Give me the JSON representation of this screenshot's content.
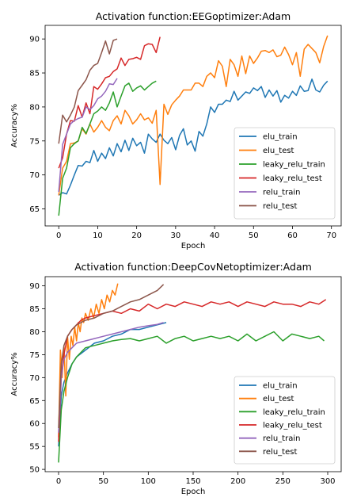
{
  "chart_data": [
    {
      "type": "line",
      "title": "Activation function:EEGoptimizer:Adam",
      "xlabel": "Epoch",
      "ylabel": "Accuracy%",
      "xlim": [
        -3.5,
        72.5
      ],
      "ylim": [
        62.5,
        92.0
      ],
      "xticks": [
        0,
        10,
        20,
        30,
        40,
        50,
        60,
        70
      ],
      "yticks": [
        65,
        70,
        75,
        80,
        85,
        90
      ],
      "grid": false,
      "legend_position": "lower-right",
      "series": [
        {
          "name": "elu_train",
          "color": "#1f77b4",
          "values": [
            67.0,
            67.4,
            67.2,
            68.5,
            70.0,
            71.4,
            71.3,
            72.0,
            71.8,
            73.6,
            72.0,
            73.2,
            72.4,
            74.0,
            72.8,
            74.6,
            73.4,
            75.1,
            73.6,
            75.4,
            74.3,
            74.8,
            73.2,
            76.0,
            75.3,
            74.8,
            76.0,
            75.1,
            74.6,
            75.5,
            73.7,
            75.8,
            76.8,
            74.4,
            75.0,
            73.5,
            76.4,
            75.7,
            77.5,
            80.0,
            79.2,
            80.4,
            80.4,
            81.0,
            80.8,
            82.3,
            81.0,
            81.6,
            82.2,
            82.0,
            82.8,
            82.4,
            83.0,
            81.4,
            82.5,
            81.6,
            82.4,
            80.7,
            81.7,
            81.3,
            82.3,
            81.7,
            83.1,
            82.3,
            82.4,
            84.1,
            82.5,
            82.2,
            83.2,
            83.8
          ]
        },
        {
          "name": "elu_test",
          "color": "#ff7f0e",
          "values": [
            67.0,
            71.0,
            72.0,
            74.6,
            74.7,
            75.0,
            76.8,
            76.0,
            77.5,
            76.3,
            77.0,
            78.0,
            77.0,
            76.5,
            78.0,
            78.7,
            77.5,
            79.5,
            78.7,
            77.5,
            78.1,
            79.0,
            78.1,
            78.4,
            77.6,
            79.5,
            68.6,
            80.4,
            78.9,
            80.3,
            81.0,
            81.6,
            82.5,
            82.5,
            82.5,
            83.5,
            83.5,
            83.0,
            84.5,
            85.0,
            84.3,
            86.8,
            86.0,
            83.0,
            87.0,
            86.2,
            84.5,
            87.5,
            84.9,
            87.5,
            86.4,
            87.2,
            88.2,
            88.3,
            88.0,
            88.4,
            87.4,
            87.6,
            88.8,
            87.7,
            86.2,
            88.0,
            84.5,
            88.5,
            89.2,
            88.6,
            88.0,
            86.5,
            88.9,
            90.5
          ]
        },
        {
          "name": "leaky_relu_train",
          "color": "#2ca02c",
          "values": [
            64.0,
            69.5,
            71.0,
            74.0,
            74.6,
            75.0,
            77.0,
            76.1,
            77.5,
            79.0,
            79.4,
            80.0,
            79.5,
            80.6,
            82.2,
            80.0,
            81.6,
            83.1,
            83.5,
            82.3,
            82.8,
            83.1,
            82.5,
            83.0,
            83.5,
            83.8
          ]
        },
        {
          "name": "leaky_relu_test",
          "color": "#d62728",
          "values": [
            71.0,
            72.5,
            76.0,
            78.0,
            77.9,
            80.2,
            78.5,
            80.6,
            79.0,
            83.0,
            82.6,
            83.4,
            84.3,
            84.5,
            85.2,
            85.6,
            87.2,
            86.1,
            87.0,
            87.1,
            87.3,
            87.0,
            89.0,
            89.3,
            89.2,
            88.0,
            90.3
          ]
        },
        {
          "name": "relu_train",
          "color": "#9467bd",
          "values": [
            67.5,
            74.5,
            76.0,
            77.5,
            78.0,
            78.3,
            78.5,
            80.0,
            79.6,
            80.2,
            81.2,
            81.6,
            82.3,
            83.4,
            83.3,
            84.2
          ]
        },
        {
          "name": "relu_test",
          "color": "#8c564b",
          "values": [
            74.6,
            78.8,
            77.8,
            78.8,
            80.0,
            82.4,
            83.2,
            84.0,
            85.4,
            86.1,
            86.4,
            88.0,
            89.7,
            87.8,
            89.8,
            90.0
          ]
        }
      ]
    },
    {
      "type": "line",
      "title": "Activation function:DeepCovNetoptimizer:Adam",
      "xlabel": "Epoch",
      "ylabel": "Accuracy%",
      "xlim": [
        -15,
        315
      ],
      "ylim": [
        49.5,
        92.0
      ],
      "xticks": [
        0,
        50,
        100,
        150,
        200,
        250,
        300
      ],
      "yticks": [
        50,
        55,
        60,
        65,
        70,
        75,
        80,
        85,
        90
      ],
      "grid": false,
      "legend_position": "lower-right",
      "series": [
        {
          "name": "elu_train",
          "color": "#1f77b4",
          "x": [
            0,
            3,
            6,
            10,
            15,
            20,
            30,
            40,
            50,
            60,
            70,
            80,
            90,
            100,
            110,
            120
          ],
          "y": [
            55.0,
            66.0,
            69.0,
            71.0,
            73.0,
            74.5,
            76.0,
            77.5,
            78.0,
            79.0,
            79.5,
            80.5,
            80.5,
            81.0,
            81.5,
            82.0
          ]
        },
        {
          "name": "elu_test",
          "color": "#ff7f0e",
          "x": [
            0,
            2,
            4,
            6,
            8,
            10,
            12,
            14,
            16,
            18,
            20,
            22,
            24,
            26,
            28,
            30,
            33,
            36,
            39,
            42,
            45,
            48,
            51,
            54,
            57,
            60,
            63,
            66
          ],
          "y": [
            57.0,
            76.0,
            70.0,
            77.0,
            66.0,
            79.0,
            74.0,
            79.0,
            77.0,
            81.0,
            78.0,
            82.0,
            80.0,
            83.0,
            82.0,
            84.0,
            82.5,
            85.0,
            83.0,
            86.0,
            84.0,
            87.0,
            85.0,
            88.0,
            86.5,
            89.0,
            88.0,
            90.5
          ]
        },
        {
          "name": "leaky_relu_train",
          "color": "#2ca02c",
          "x": [
            0,
            3,
            6,
            10,
            15,
            20,
            25,
            30,
            40,
            50,
            60,
            70,
            80,
            90,
            100,
            110,
            120,
            130,
            140,
            150,
            160,
            170,
            180,
            190,
            200,
            210,
            220,
            230,
            240,
            250,
            260,
            270,
            280,
            290,
            296
          ],
          "y": [
            51.5,
            63.0,
            67.0,
            70.0,
            73.0,
            74.5,
            75.5,
            76.5,
            77.0,
            77.5,
            78.0,
            78.3,
            78.5,
            78.0,
            78.5,
            79.0,
            77.5,
            78.5,
            79.0,
            78.0,
            78.5,
            79.0,
            78.5,
            79.0,
            78.0,
            79.5,
            78.0,
            79.0,
            80.0,
            78.0,
            79.5,
            79.0,
            78.5,
            79.0,
            78.0
          ]
        },
        {
          "name": "leaky_relu_test",
          "color": "#d62728",
          "x": [
            0,
            3,
            6,
            10,
            15,
            20,
            25,
            30,
            40,
            50,
            60,
            70,
            80,
            90,
            100,
            110,
            120,
            130,
            140,
            150,
            160,
            170,
            180,
            190,
            200,
            210,
            220,
            230,
            240,
            250,
            260,
            270,
            280,
            290,
            298
          ],
          "y": [
            56.0,
            70.0,
            75.0,
            79.0,
            80.5,
            81.5,
            82.5,
            83.0,
            83.5,
            84.0,
            84.5,
            84.0,
            85.0,
            84.5,
            86.0,
            85.0,
            86.0,
            85.5,
            86.5,
            86.0,
            85.5,
            86.5,
            86.0,
            86.5,
            85.5,
            86.5,
            86.0,
            85.5,
            86.5,
            86.0,
            86.0,
            85.5,
            86.5,
            86.0,
            87.0
          ]
        },
        {
          "name": "relu_train",
          "color": "#9467bd",
          "x": [
            0,
            3,
            6,
            10,
            15,
            20,
            30,
            40,
            50,
            60,
            70,
            80,
            90,
            100,
            110,
            117
          ],
          "y": [
            58.0,
            70.0,
            74.0,
            75.5,
            76.5,
            77.5,
            78.0,
            78.5,
            79.0,
            79.5,
            80.0,
            80.5,
            81.0,
            81.3,
            81.6,
            82.0
          ]
        },
        {
          "name": "relu_test",
          "color": "#8c564b",
          "x": [
            0,
            3,
            6,
            10,
            15,
            20,
            30,
            40,
            50,
            60,
            70,
            80,
            90,
            100,
            110,
            117
          ],
          "y": [
            59.0,
            73.0,
            77.0,
            79.0,
            80.5,
            81.5,
            82.5,
            83.0,
            84.0,
            84.5,
            85.5,
            86.5,
            87.0,
            88.0,
            89.0,
            90.3
          ]
        }
      ]
    }
  ]
}
